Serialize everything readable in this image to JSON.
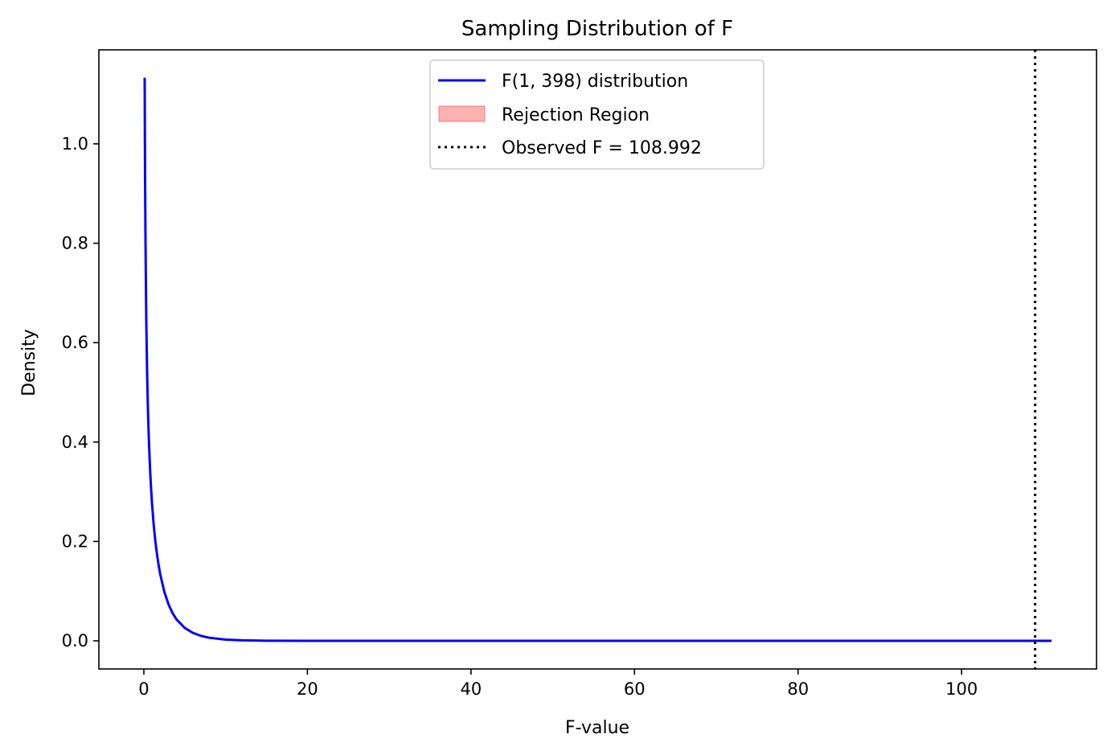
{
  "chart_data": {
    "type": "line",
    "title": "Sampling Distribution of F",
    "xlabel": "F-value",
    "ylabel": "Density",
    "xlim": [
      -5.5,
      116.5
    ],
    "ylim": [
      -0.0566,
      1.1891
    ],
    "xticks": [
      0,
      20,
      40,
      60,
      80,
      100
    ],
    "xtick_labels": [
      "0",
      "20",
      "40",
      "60",
      "80",
      "100"
    ],
    "yticks": [
      0.0,
      0.2,
      0.4,
      0.6,
      0.8,
      1.0
    ],
    "ytick_labels": [
      "0.0",
      "0.2",
      "0.4",
      "0.6",
      "0.8",
      "1.0"
    ],
    "grid": false,
    "legend_position": "upper center",
    "series": [
      {
        "name": "F(1, 398) distribution",
        "kind": "line",
        "color": "#0000ff",
        "points": [
          [
            0.1,
            1.133
          ],
          [
            0.15,
            0.93
          ],
          [
            0.2,
            0.808
          ],
          [
            0.3,
            0.641
          ],
          [
            0.4,
            0.537
          ],
          [
            0.5,
            0.466
          ],
          [
            0.6,
            0.411
          ],
          [
            0.7,
            0.368
          ],
          [
            0.8,
            0.332
          ],
          [
            0.9,
            0.302
          ],
          [
            1.0,
            0.276
          ],
          [
            1.2,
            0.234
          ],
          [
            1.4,
            0.201
          ],
          [
            1.6,
            0.175
          ],
          [
            1.8,
            0.153
          ],
          [
            2.0,
            0.134
          ],
          [
            2.5,
            0.099
          ],
          [
            3.0,
            0.074
          ],
          [
            3.5,
            0.056
          ],
          [
            4.0,
            0.043
          ],
          [
            5.0,
            0.026
          ],
          [
            6.0,
            0.016
          ],
          [
            7.0,
            0.0099
          ],
          [
            8.0,
            0.0062
          ],
          [
            10.0,
            0.0025
          ],
          [
            12.0,
            0.001
          ],
          [
            15.0,
            0.0003
          ],
          [
            20.0,
            0.0
          ],
          [
            40.0,
            0.0
          ],
          [
            60.0,
            0.0
          ],
          [
            80.0,
            0.0
          ],
          [
            100.0,
            0.0
          ],
          [
            111.0,
            0.0
          ]
        ]
      },
      {
        "name": "Rejection Region",
        "kind": "area",
        "color": "#ff0000",
        "points": []
      },
      {
        "name": "Observed F = 108.992",
        "kind": "vline",
        "color": "#000000",
        "x": 108.992
      }
    ]
  }
}
